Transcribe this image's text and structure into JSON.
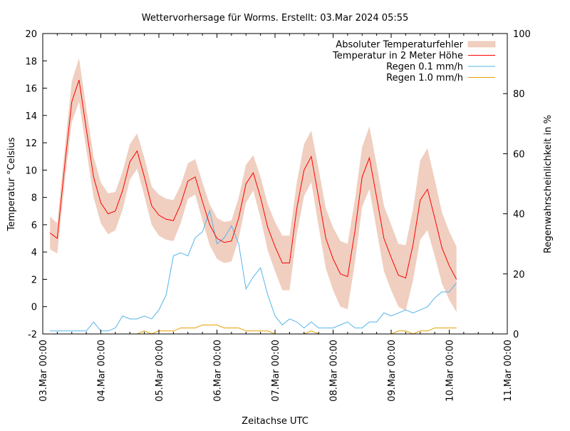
{
  "chart_data": {
    "type": "line",
    "title": "Wettervorhersage für Worms. Erstellt: 03.Mar 2024 05:55",
    "xlabel": "Zeitachse UTC",
    "ylabel": "Temperatur °Celsius",
    "y2label": "Regenwahrscheinlichkeit in %",
    "ylim": [
      -2,
      20
    ],
    "y2lim": [
      0,
      100
    ],
    "yticks": [
      -2,
      0,
      2,
      4,
      6,
      8,
      10,
      12,
      14,
      16,
      18,
      20
    ],
    "y2ticks": [
      0,
      20,
      40,
      60,
      80,
      100
    ],
    "xticks": [
      "03.Mar 00:00",
      "04.Mar 00:00",
      "05.Mar 00:00",
      "06.Mar 00:00",
      "07.Mar 00:00",
      "08.Mar 00:00",
      "09.Mar 00:00",
      "10.Mar 00:00",
      "11.Mar 00:00"
    ],
    "grid": false,
    "legend_position": "top-right",
    "x": [
      "03.Mar 03:00",
      "03.Mar 06:00",
      "03.Mar 09:00",
      "03.Mar 12:00",
      "03.Mar 15:00",
      "03.Mar 18:00",
      "03.Mar 21:00",
      "04.Mar 00:00",
      "04.Mar 03:00",
      "04.Mar 06:00",
      "04.Mar 09:00",
      "04.Mar 12:00",
      "04.Mar 15:00",
      "04.Mar 18:00",
      "04.Mar 21:00",
      "05.Mar 00:00",
      "05.Mar 03:00",
      "05.Mar 06:00",
      "05.Mar 09:00",
      "05.Mar 12:00",
      "05.Mar 15:00",
      "05.Mar 18:00",
      "05.Mar 21:00",
      "06.Mar 00:00",
      "06.Mar 03:00",
      "06.Mar 06:00",
      "06.Mar 09:00",
      "06.Mar 12:00",
      "06.Mar 15:00",
      "06.Mar 18:00",
      "06.Mar 21:00",
      "07.Mar 00:00",
      "07.Mar 03:00",
      "07.Mar 06:00",
      "07.Mar 09:00",
      "07.Mar 12:00",
      "07.Mar 15:00",
      "07.Mar 18:00",
      "07.Mar 21:00",
      "08.Mar 00:00",
      "08.Mar 03:00",
      "08.Mar 06:00",
      "08.Mar 09:00",
      "08.Mar 12:00",
      "08.Mar 15:00",
      "08.Mar 18:00",
      "08.Mar 21:00",
      "09.Mar 00:00",
      "09.Mar 03:00",
      "09.Mar 06:00",
      "09.Mar 09:00",
      "09.Mar 12:00",
      "09.Mar 15:00",
      "09.Mar 18:00",
      "09.Mar 21:00",
      "10.Mar 00:00",
      "10.Mar 03:00"
    ],
    "series": [
      {
        "name": "Absoluter Temperaturfehler",
        "type": "band",
        "axis": "left",
        "color": "#f0cfc0",
        "error": [
          1.2,
          1.1,
          1.2,
          1.5,
          1.6,
          1.5,
          1.5,
          1.5,
          1.5,
          1.4,
          1.4,
          1.3,
          1.3,
          1.4,
          1.4,
          1.5,
          1.5,
          1.5,
          1.4,
          1.3,
          1.3,
          1.4,
          1.5,
          1.5,
          1.5,
          1.5,
          1.5,
          1.4,
          1.3,
          1.5,
          1.7,
          1.8,
          2.0,
          2.0,
          1.9,
          1.9,
          1.9,
          2.1,
          2.2,
          2.3,
          2.4,
          2.4,
          2.3,
          2.2,
          2.3,
          2.4,
          2.4,
          2.4,
          2.3,
          2.4,
          2.6,
          2.9,
          3.0,
          2.8,
          2.6,
          2.5,
          2.4
        ]
      },
      {
        "name": "Temperatur in 2 Meter Höhe",
        "type": "line",
        "axis": "left",
        "color": "#ff0000",
        "values": [
          5.4,
          5.0,
          10.2,
          15.0,
          16.6,
          13.0,
          9.5,
          7.6,
          6.8,
          7.0,
          8.5,
          10.6,
          11.4,
          9.5,
          7.4,
          6.7,
          6.4,
          6.3,
          7.5,
          9.2,
          9.5,
          7.7,
          6.0,
          5.0,
          4.7,
          4.8,
          6.5,
          9.0,
          9.8,
          8.0,
          5.8,
          4.4,
          3.2,
          3.2,
          7.2,
          10.0,
          11.0,
          8.0,
          5.0,
          3.5,
          2.4,
          2.2,
          5.5,
          9.5,
          10.9,
          8.0,
          5.0,
          3.6,
          2.3,
          2.1,
          4.5,
          7.8,
          8.6,
          6.5,
          4.3,
          3.0,
          2.0
        ]
      },
      {
        "name": "Regen 0.1 mm/h",
        "type": "line",
        "axis": "right",
        "color": "#56b4e9",
        "values": [
          1,
          1,
          1,
          1,
          1,
          1,
          4,
          1,
          1,
          2,
          6,
          5,
          5,
          6,
          5,
          8,
          13,
          26,
          27,
          26,
          32,
          34,
          41,
          30,
          32,
          36,
          30,
          15,
          19,
          22,
          13,
          6,
          3,
          5,
          4,
          2,
          4,
          2,
          2,
          2,
          3,
          4,
          2,
          2,
          4,
          4,
          7,
          6,
          7,
          8,
          7,
          8,
          9,
          12,
          14,
          14,
          17
        ]
      },
      {
        "name": "Regen 1.0 mm/h",
        "type": "line",
        "axis": "right",
        "color": "#e69f00",
        "values": [
          0,
          0,
          0,
          0,
          0,
          0,
          0,
          0,
          0,
          0,
          0,
          0,
          0,
          1,
          0,
          1,
          1,
          1,
          2,
          2,
          2,
          3,
          3,
          3,
          2,
          2,
          2,
          1,
          1,
          1,
          1,
          0,
          0,
          0,
          0,
          0,
          1,
          0,
          0,
          0,
          0,
          0,
          0,
          0,
          0,
          0,
          0,
          0,
          1,
          1,
          0,
          1,
          1,
          2,
          2,
          2,
          2
        ]
      }
    ]
  }
}
